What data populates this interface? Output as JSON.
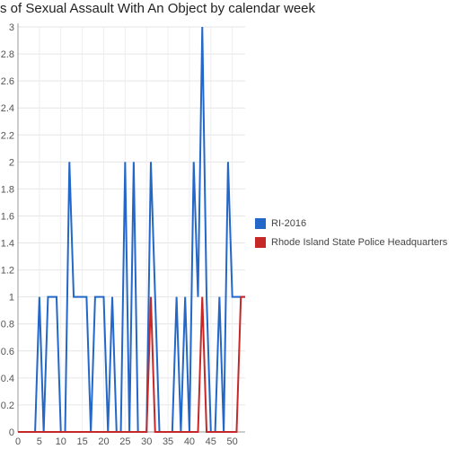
{
  "chart_data": {
    "type": "line",
    "title": "s of Sexual Assault With An Object by calendar week",
    "xlabel": "",
    "ylabel": "",
    "xlim": [
      0,
      53
    ],
    "ylim": [
      0,
      3
    ],
    "xticks": [
      0,
      5,
      10,
      15,
      20,
      25,
      30,
      35,
      40,
      45,
      50
    ],
    "yticks": [
      0,
      0.2,
      0.4,
      0.6,
      0.8,
      1,
      1.2,
      1.4,
      1.6,
      1.8,
      2,
      2.2,
      2.4,
      2.6,
      2.8,
      3
    ],
    "grid": true,
    "legend_position": "right",
    "series": [
      {
        "name": "RI-2016",
        "color": "#2367c8",
        "x": [
          0,
          1,
          2,
          3,
          4,
          5,
          6,
          7,
          8,
          9,
          10,
          11,
          12,
          13,
          14,
          15,
          16,
          17,
          18,
          19,
          20,
          21,
          22,
          23,
          24,
          25,
          26,
          27,
          28,
          29,
          30,
          31,
          32,
          33,
          34,
          35,
          36,
          37,
          38,
          39,
          40,
          41,
          42,
          43,
          44,
          45,
          46,
          47,
          48,
          49,
          50,
          51,
          52,
          53
        ],
        "values": [
          0,
          0,
          0,
          0,
          0,
          1,
          0,
          1,
          1,
          1,
          0,
          0,
          2,
          1,
          1,
          1,
          1,
          0,
          1,
          1,
          1,
          0,
          1,
          0,
          0,
          2,
          0,
          2,
          0,
          0,
          0,
          2,
          1,
          0,
          0,
          0,
          0,
          1,
          0,
          1,
          0,
          2,
          1,
          3,
          1,
          0,
          0,
          1,
          0,
          2,
          1,
          1,
          1,
          1
        ]
      },
      {
        "name": "Rhode Island State Police Headquarters",
        "color": "#c62828",
        "x": [
          0,
          1,
          2,
          3,
          4,
          5,
          6,
          7,
          8,
          9,
          10,
          11,
          12,
          13,
          14,
          15,
          16,
          17,
          18,
          19,
          20,
          21,
          22,
          23,
          24,
          25,
          26,
          27,
          28,
          29,
          30,
          31,
          32,
          33,
          34,
          35,
          36,
          37,
          38,
          39,
          40,
          41,
          42,
          43,
          44,
          45,
          46,
          47,
          48,
          49,
          50,
          51,
          52,
          53
        ],
        "values": [
          0,
          0,
          0,
          0,
          0,
          0,
          0,
          0,
          0,
          0,
          0,
          0,
          0,
          0,
          0,
          0,
          0,
          0,
          0,
          0,
          0,
          0,
          0,
          0,
          0,
          0,
          0,
          0,
          0,
          0,
          0,
          1,
          0,
          0,
          0,
          0,
          0,
          0,
          0,
          0,
          0,
          0,
          0,
          1,
          0,
          0,
          0,
          0,
          0,
          0,
          0,
          0,
          1,
          1
        ]
      }
    ]
  }
}
